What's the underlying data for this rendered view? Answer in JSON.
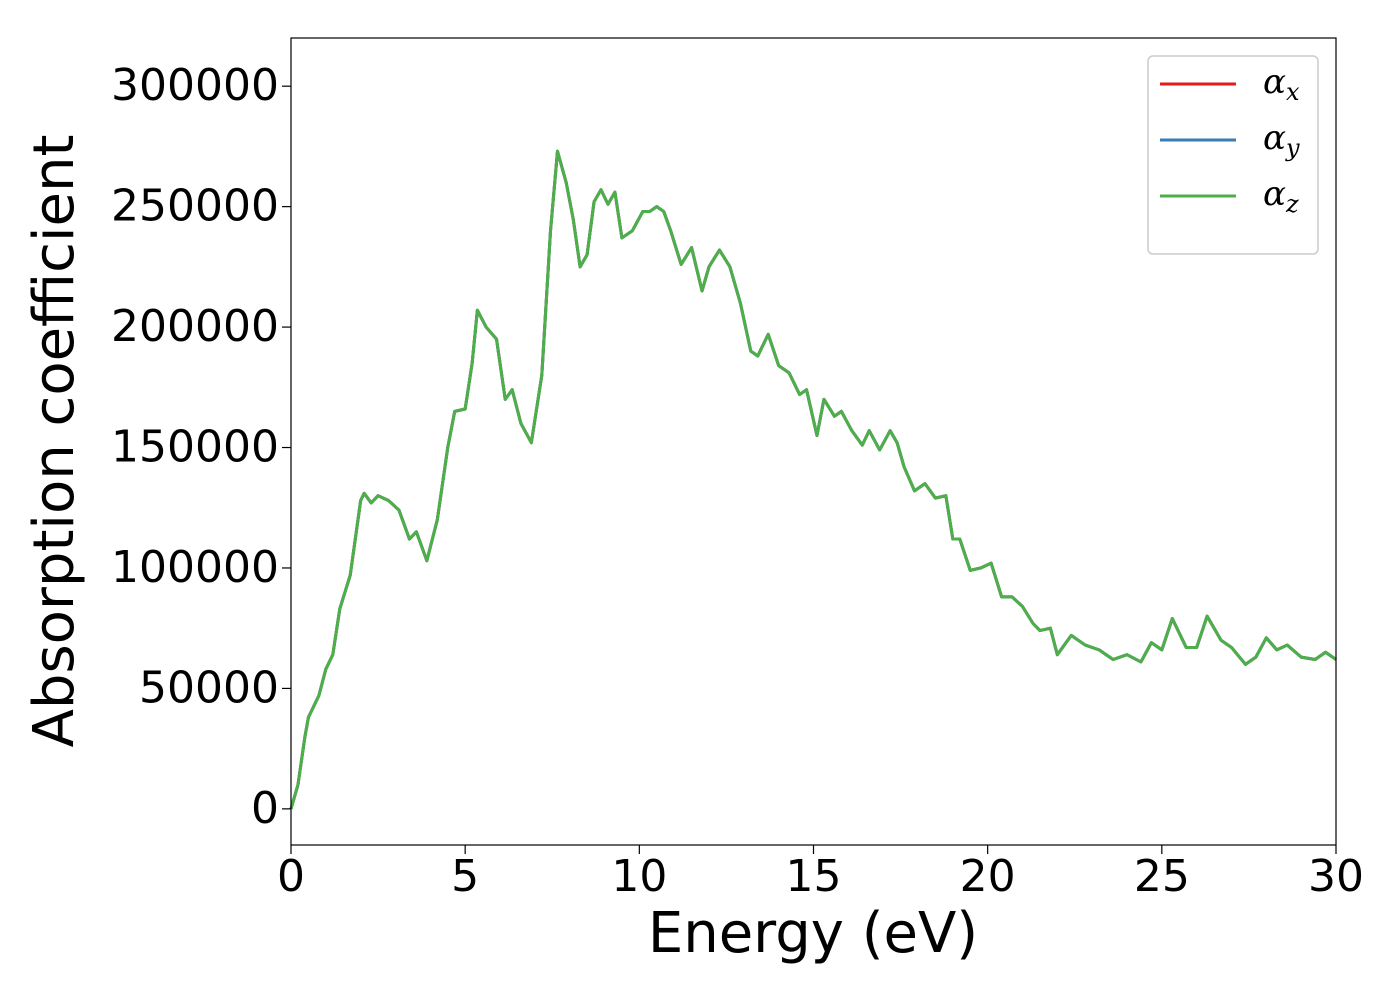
{
  "chart_data": {
    "type": "line",
    "x_label": "Energy (eV)",
    "y_label": "Absorption coefficient",
    "x": [
      0,
      0.2,
      0.4,
      0.5,
      0.8,
      1.0,
      1.2,
      1.4,
      1.7,
      2.0,
      2.1,
      2.3,
      2.5,
      2.8,
      3.1,
      3.4,
      3.6,
      3.9,
      4.2,
      4.5,
      4.7,
      5.0,
      5.2,
      5.35,
      5.6,
      5.9,
      6.15,
      6.35,
      6.6,
      6.9,
      7.2,
      7.45,
      7.65,
      7.9,
      8.1,
      8.3,
      8.5,
      8.7,
      8.9,
      9.1,
      9.3,
      9.5,
      9.8,
      10.1,
      10.3,
      10.5,
      10.7,
      10.9,
      11.2,
      11.5,
      11.8,
      12.0,
      12.3,
      12.6,
      12.9,
      13.2,
      13.4,
      13.7,
      14.0,
      14.3,
      14.6,
      14.8,
      15.1,
      15.3,
      15.6,
      15.8,
      16.1,
      16.4,
      16.6,
      16.9,
      17.2,
      17.4,
      17.6,
      17.9,
      18.2,
      18.5,
      18.8,
      19.0,
      19.2,
      19.5,
      19.8,
      20.1,
      20.4,
      20.7,
      21.0,
      21.3,
      21.5,
      21.8,
      22.0,
      22.4,
      22.8,
      23.2,
      23.6,
      24.0,
      24.4,
      24.7,
      25.0,
      25.3,
      25.7,
      26.0,
      26.3,
      26.7,
      27.0,
      27.4,
      27.7,
      28.0,
      28.3,
      28.6,
      29.0,
      29.4,
      29.7,
      30.0
    ],
    "series": [
      {
        "name": "αx",
        "color": "#e41a1c",
        "values": [
          0,
          10000,
          30000,
          38000,
          47000,
          58000,
          64000,
          83000,
          97000,
          128000,
          131000,
          127000,
          130000,
          128000,
          124000,
          112000,
          115000,
          103000,
          120000,
          150000,
          165000,
          166000,
          185000,
          207000,
          200000,
          195000,
          170000,
          174000,
          160000,
          152000,
          180000,
          240000,
          273000,
          260000,
          245000,
          225000,
          230000,
          252000,
          257000,
          251000,
          256000,
          237000,
          240000,
          248000,
          248000,
          250000,
          248000,
          240000,
          226000,
          233000,
          215000,
          225000,
          232000,
          225000,
          210000,
          190000,
          188000,
          197000,
          184000,
          181000,
          172000,
          174000,
          155000,
          170000,
          163000,
          165000,
          157000,
          151000,
          157000,
          149000,
          157000,
          152000,
          142000,
          132000,
          135000,
          129000,
          130000,
          112000,
          112000,
          99000,
          100000,
          102000,
          88000,
          88000,
          84000,
          77000,
          74000,
          75000,
          64000,
          72000,
          68000,
          66000,
          62000,
          64000,
          61000,
          69000,
          66000,
          79000,
          67000,
          67000,
          80000,
          70000,
          67000,
          60000,
          63000,
          71000,
          66000,
          68000,
          63000,
          62000,
          65000,
          62000
        ]
      },
      {
        "name": "αy",
        "color": "#377eb8",
        "values": [
          0,
          10000,
          30000,
          38000,
          47000,
          58000,
          64000,
          83000,
          97000,
          128000,
          131000,
          127000,
          130000,
          128000,
          124000,
          112000,
          115000,
          103000,
          120000,
          150000,
          165000,
          166000,
          185000,
          207000,
          200000,
          195000,
          170000,
          174000,
          160000,
          152000,
          180000,
          240000,
          273000,
          260000,
          245000,
          225000,
          230000,
          252000,
          257000,
          251000,
          256000,
          237000,
          240000,
          248000,
          248000,
          250000,
          248000,
          240000,
          226000,
          233000,
          215000,
          225000,
          232000,
          225000,
          210000,
          190000,
          188000,
          197000,
          184000,
          181000,
          172000,
          174000,
          155000,
          170000,
          163000,
          165000,
          157000,
          151000,
          157000,
          149000,
          157000,
          152000,
          142000,
          132000,
          135000,
          129000,
          130000,
          112000,
          112000,
          99000,
          100000,
          102000,
          88000,
          88000,
          84000,
          77000,
          74000,
          75000,
          64000,
          72000,
          68000,
          66000,
          62000,
          64000,
          61000,
          69000,
          66000,
          79000,
          67000,
          67000,
          80000,
          70000,
          67000,
          60000,
          63000,
          71000,
          66000,
          68000,
          63000,
          62000,
          65000,
          62000
        ]
      },
      {
        "name": "αz",
        "color": "#4daf4a",
        "values": [
          0,
          10000,
          30000,
          38000,
          47000,
          58000,
          64000,
          83000,
          97000,
          128000,
          131000,
          127000,
          130000,
          128000,
          124000,
          112000,
          115000,
          103000,
          120000,
          150000,
          165000,
          166000,
          185000,
          207000,
          200000,
          195000,
          170000,
          174000,
          160000,
          152000,
          180000,
          240000,
          273000,
          260000,
          245000,
          225000,
          230000,
          252000,
          257000,
          251000,
          256000,
          237000,
          240000,
          248000,
          248000,
          250000,
          248000,
          240000,
          226000,
          233000,
          215000,
          225000,
          232000,
          225000,
          210000,
          190000,
          188000,
          197000,
          184000,
          181000,
          172000,
          174000,
          155000,
          170000,
          163000,
          165000,
          157000,
          151000,
          157000,
          149000,
          157000,
          152000,
          142000,
          132000,
          135000,
          129000,
          130000,
          112000,
          112000,
          99000,
          100000,
          102000,
          88000,
          88000,
          84000,
          77000,
          74000,
          75000,
          64000,
          72000,
          68000,
          66000,
          62000,
          64000,
          61000,
          69000,
          66000,
          79000,
          67000,
          67000,
          80000,
          70000,
          67000,
          60000,
          63000,
          71000,
          66000,
          68000,
          63000,
          62000,
          65000,
          62000
        ]
      }
    ],
    "xlim": [
      0,
      30
    ],
    "xticks": [
      0,
      5,
      10,
      15,
      20,
      25,
      30
    ],
    "ylim": [
      -15000,
      320000
    ],
    "yticks": [
      0,
      50000,
      100000,
      150000,
      200000,
      250000,
      300000
    ],
    "grid": false,
    "legend": "upper right"
  }
}
